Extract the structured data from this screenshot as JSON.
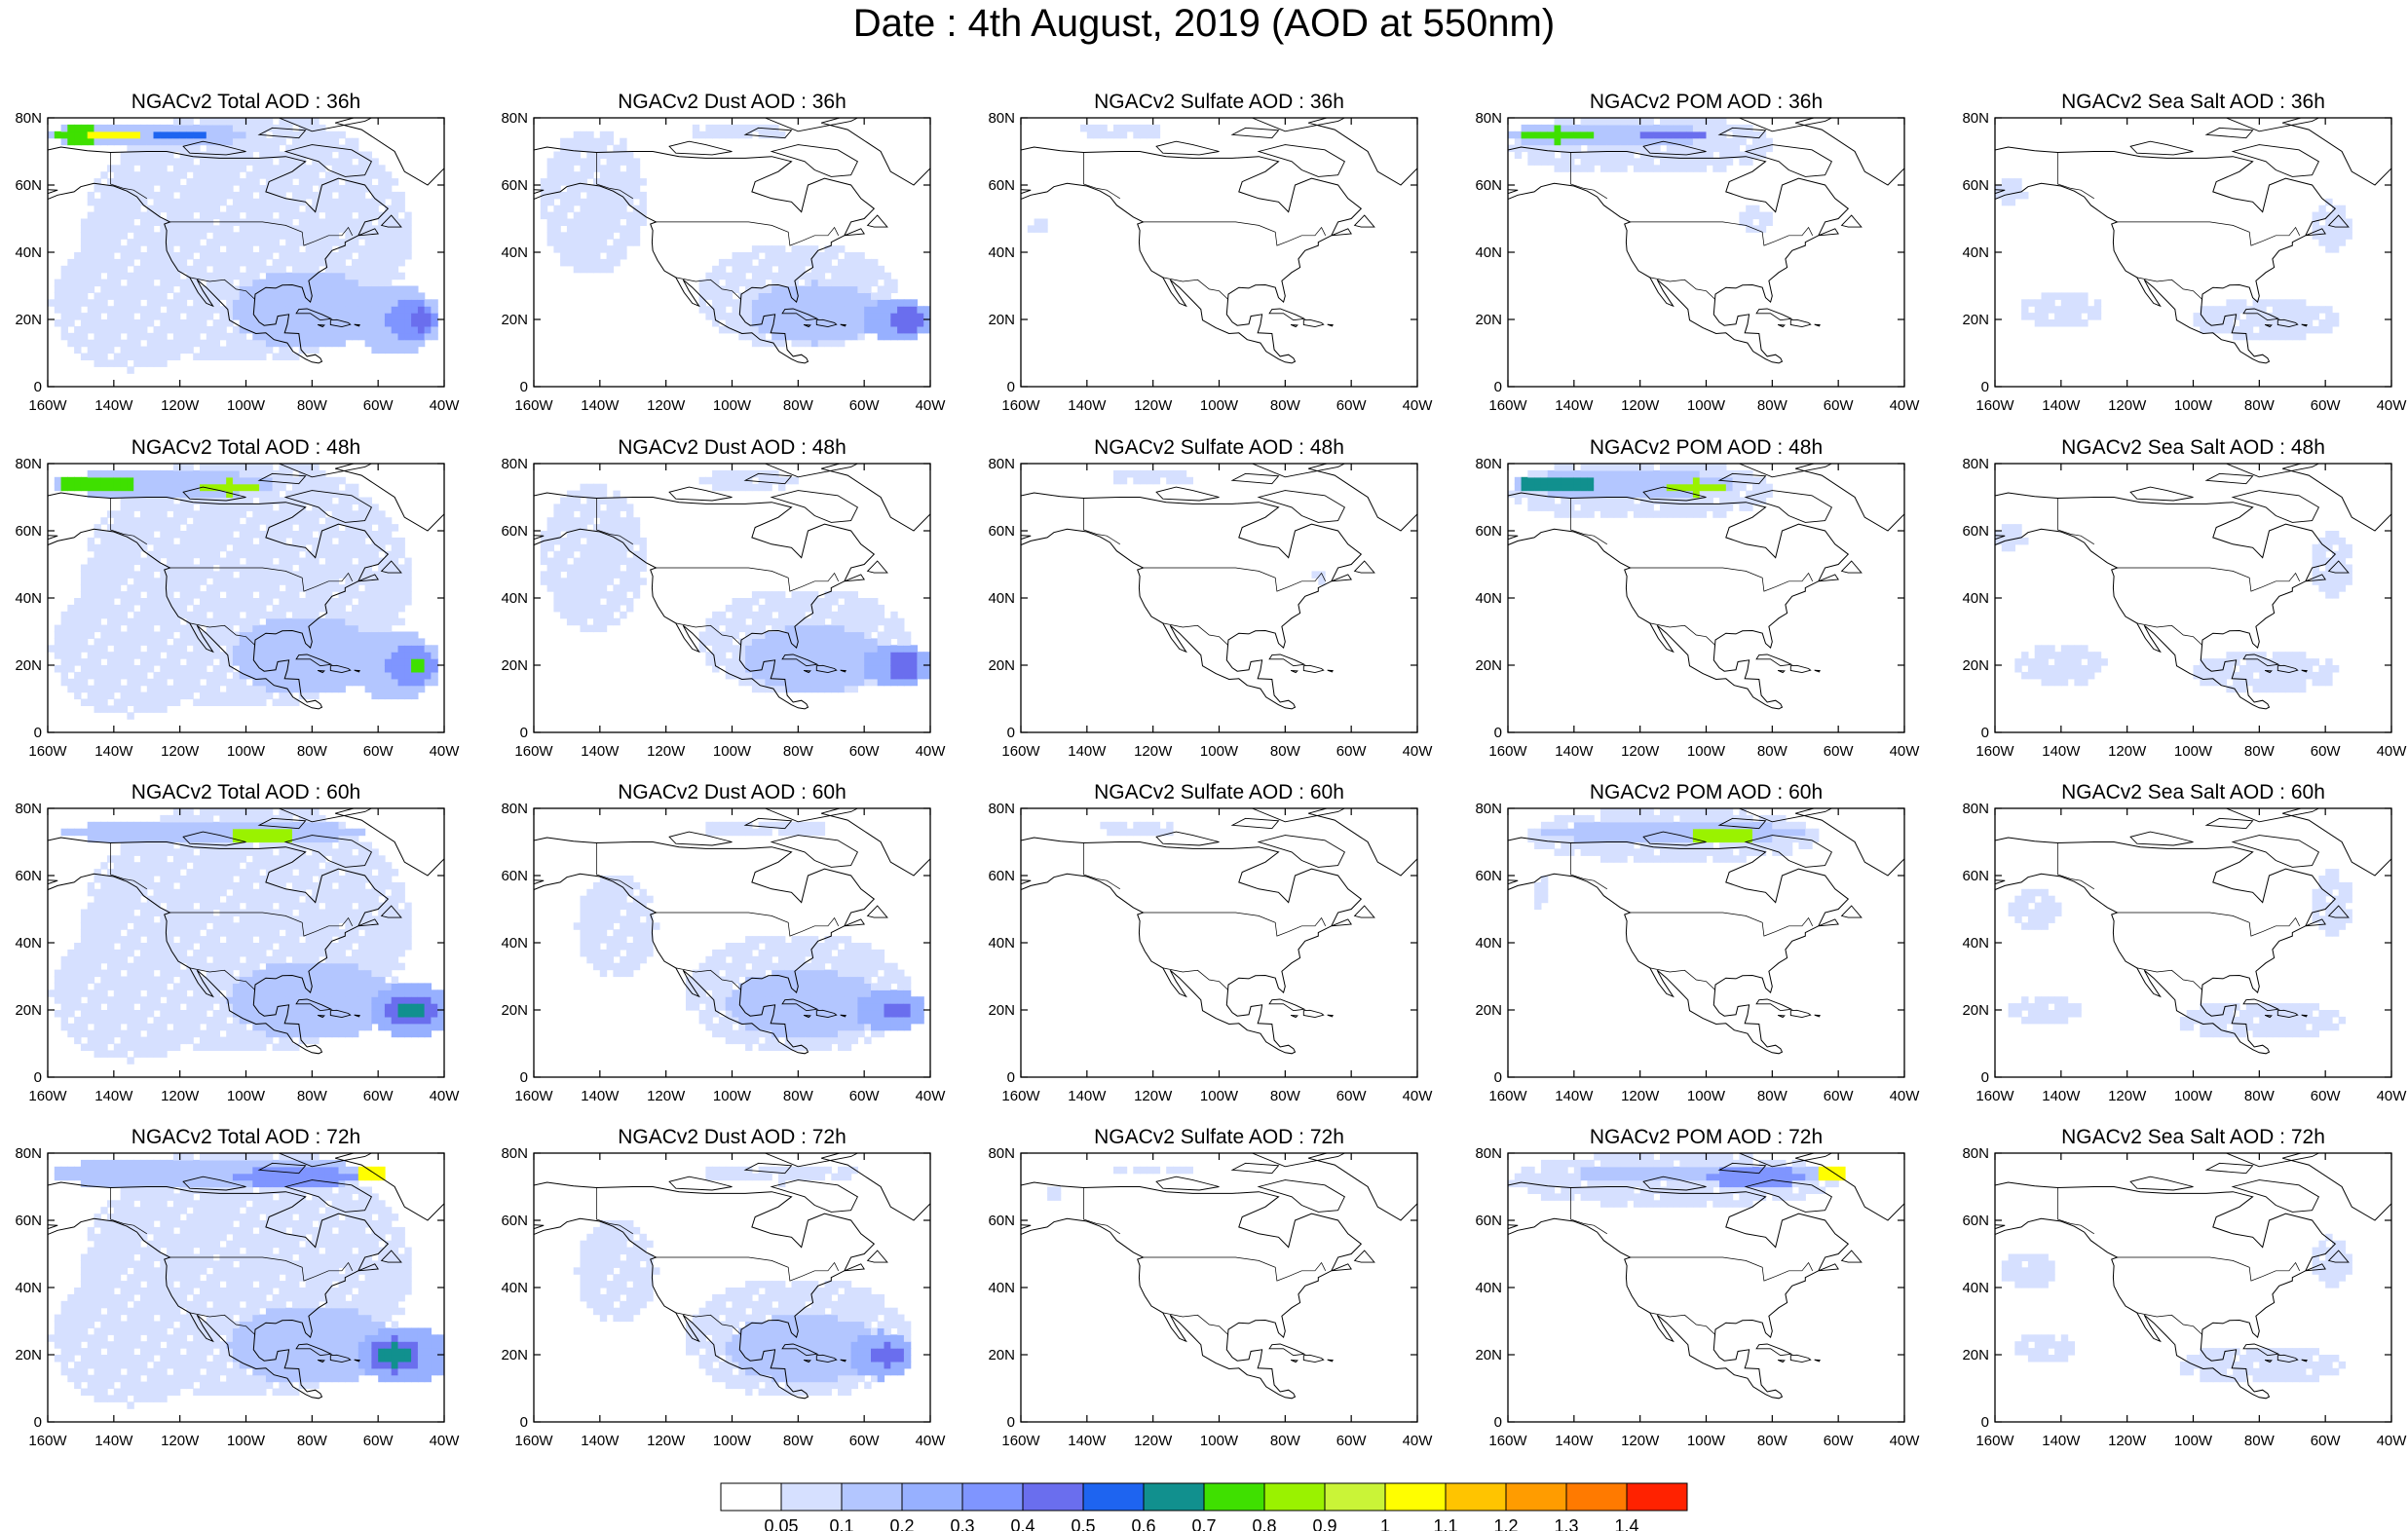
{
  "title": "Date : 4th August, 2019 (AOD at 550nm)",
  "colors": {
    "levels": [
      "#ffffff",
      "#d6e0ff",
      "#b3c6ff",
      "#97b0ff",
      "#7f95ff",
      "#6a6eee",
      "#1e64f0",
      "#11908e",
      "#3fe000",
      "#9af200",
      "#caf437",
      "#fffe00",
      "#ffc400",
      "#ff9c00",
      "#ff7a00",
      "#ff2200"
    ],
    "coast": "#000000",
    "frame": "#000000"
  },
  "chart_data": {
    "type": "heatmap",
    "panel_rows": [
      "36h",
      "48h",
      "60h",
      "72h"
    ],
    "panels": [
      [
        "NGACv2 Total AOD : 36h",
        "NGACv2 Dust AOD : 36h",
        "NGACv2 Sulfate AOD : 36h",
        "NGACv2 POM AOD : 36h",
        "NGACv2 Sea Salt AOD : 36h"
      ],
      [
        "NGACv2 Total AOD : 48h",
        "NGACv2 Dust AOD : 48h",
        "NGACv2 Sulfate AOD : 48h",
        "NGACv2 POM AOD : 48h",
        "NGACv2 Sea Salt AOD : 48h"
      ],
      [
        "NGACv2 Total AOD : 60h",
        "NGACv2 Dust AOD : 60h",
        "NGACv2 Sulfate AOD : 60h",
        "NGACv2 POM AOD : 60h",
        "NGACv2 Sea Salt AOD : 60h"
      ],
      [
        "NGACv2 Total AOD : 72h",
        "NGACv2 Dust AOD : 72h",
        "NGACv2 Sulfate AOD : 72h",
        "NGACv2 POM AOD : 72h",
        "NGACv2 Sea Salt  AOD : 72h"
      ]
    ],
    "x_ticks": [
      "160W",
      "140W",
      "120W",
      "100W",
      "80W",
      "60W",
      "40W"
    ],
    "y_ticks": [
      "0",
      "20N",
      "40N",
      "60N",
      "80N"
    ],
    "x_range": [
      -160,
      -40
    ],
    "y_range": [
      0,
      80
    ],
    "colorbar_levels": [
      "0.05",
      "0.1",
      "0.2",
      "0.3",
      "0.4",
      "0.5",
      "0.6",
      "0.7",
      "0.8",
      "0.9",
      "1",
      "1.1",
      "1.2",
      "1.3",
      "1.4"
    ],
    "grid": false
  }
}
